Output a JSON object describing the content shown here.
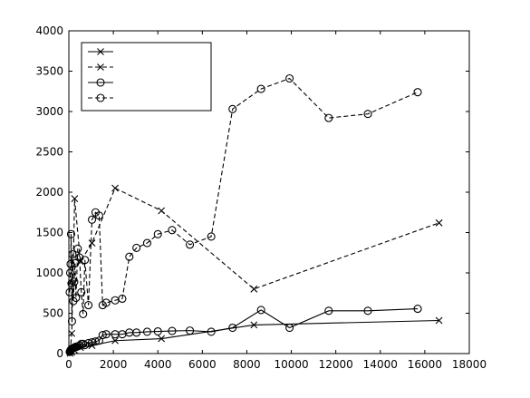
{
  "chart_data": {
    "type": "line",
    "title": "",
    "xlabel": "",
    "ylabel": "",
    "xlim": [
      0,
      18000
    ],
    "ylim": [
      0,
      4000
    ],
    "x_ticks": [
      0,
      2000,
      4000,
      6000,
      8000,
      10000,
      12000,
      14000,
      16000,
      18000
    ],
    "y_ticks": [
      0,
      500,
      1000,
      1500,
      2000,
      2500,
      3000,
      3500,
      4000
    ],
    "x_tick_labels": [
      "0",
      "2000",
      "4000",
      "6000",
      "8000",
      "10000",
      "12000",
      "14000",
      "16000",
      "18000"
    ],
    "y_tick_labels": [
      "0",
      "500",
      "1000",
      "1500",
      "2000",
      "2500",
      "3000",
      "3500",
      "4000"
    ],
    "grid": false,
    "legend": {
      "placement": "top-left",
      "entries": [
        {
          "series_index": 0,
          "label": ""
        },
        {
          "series_index": 1,
          "label": ""
        },
        {
          "series_index": 2,
          "label": ""
        },
        {
          "series_index": 3,
          "label": ""
        }
      ]
    },
    "series": [
      {
        "marker": "x",
        "line_style": "solid",
        "color": "#000000",
        "x": [
          60,
          130,
          260,
          520,
          1040,
          2080,
          4160,
          8320,
          16640
        ],
        "y": [
          5,
          20,
          40,
          75,
          100,
          160,
          185,
          355,
          410
        ]
      },
      {
        "marker": "x",
        "line_style": "dashed",
        "color": "#000000",
        "x": [
          60,
          130,
          260,
          520,
          1040,
          2080,
          4160,
          8320,
          16640
        ],
        "y": [
          30,
          250,
          1920,
          1140,
          1370,
          2050,
          1770,
          800,
          1620
        ]
      },
      {
        "marker": "o",
        "line_style": "solid",
        "color": "#000000",
        "x": [
          40,
          60,
          80,
          100,
          120,
          140,
          160,
          200,
          240,
          280,
          320,
          400,
          480,
          560,
          640,
          720,
          880,
          1040,
          1200,
          1360,
          1520,
          1680,
          2080,
          2400,
          2720,
          3040,
          3520,
          4000,
          4640,
          5440,
          6400,
          7360,
          8640,
          9920,
          11680,
          13440,
          15680
        ],
        "y": [
          20,
          30,
          40,
          50,
          55,
          60,
          65,
          70,
          75,
          80,
          85,
          90,
          100,
          120,
          120,
          105,
          130,
          140,
          150,
          160,
          230,
          240,
          240,
          240,
          260,
          260,
          270,
          275,
          280,
          285,
          270,
          320,
          540,
          320,
          530,
          530,
          555
        ]
      },
      {
        "marker": "o",
        "line_style": "dashed",
        "color": "#000000",
        "x": [
          40,
          60,
          80,
          100,
          120,
          140,
          160,
          200,
          240,
          280,
          320,
          400,
          480,
          560,
          640,
          720,
          880,
          1040,
          1200,
          1360,
          1520,
          1680,
          2080,
          2400,
          2720,
          3040,
          3520,
          4000,
          4640,
          5440,
          6400,
          7360,
          8640,
          9920,
          11680,
          13440,
          15680
        ],
        "y": [
          760,
          1000,
          1110,
          1480,
          870,
          400,
          1230,
          650,
          890,
          1120,
          690,
          1300,
          1190,
          760,
          490,
          1160,
          600,
          1660,
          1750,
          1710,
          600,
          630,
          660,
          680,
          1200,
          1310,
          1370,
          1480,
          1530,
          1350,
          1450,
          3030,
          3280,
          3410,
          2920,
          2970,
          3240
        ]
      }
    ]
  }
}
